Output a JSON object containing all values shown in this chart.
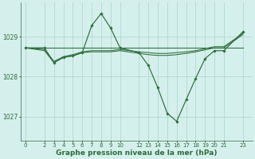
{
  "background_color": "#d5f0ec",
  "grid_color": "#b0d8d0",
  "line_color": "#2d6b3c",
  "marker_color": "#2d6b3c",
  "xlabel": "Graphe pression niveau de la mer (hPa)",
  "xlabel_fontsize": 6.5,
  "ylabel_ticks": [
    1027,
    1028,
    1029
  ],
  "xlim": [
    -0.5,
    24
  ],
  "ylim": [
    1026.4,
    1029.85
  ],
  "xticks": [
    0,
    2,
    3,
    4,
    5,
    6,
    7,
    8,
    9,
    10,
    12,
    13,
    14,
    15,
    16,
    17,
    18,
    19,
    20,
    21,
    23
  ],
  "series": [
    {
      "x": [
        0,
        2,
        3,
        4,
        5,
        6,
        7,
        8,
        9,
        10,
        12,
        13,
        14,
        15,
        16,
        17,
        18,
        19,
        20,
        21,
        23
      ],
      "y": [
        1028.72,
        1028.72,
        1028.35,
        1028.48,
        1028.52,
        1028.6,
        1029.28,
        1029.58,
        1029.22,
        1028.72,
        1028.6,
        1028.28,
        1027.72,
        1027.08,
        1026.88,
        1027.42,
        1027.95,
        1028.45,
        1028.65,
        1028.65,
        1029.12
      ],
      "has_markers": true
    },
    {
      "x": [
        0,
        2,
        3,
        4,
        5,
        6,
        7,
        8,
        9,
        10,
        12,
        13,
        14,
        15,
        16,
        17,
        18,
        19,
        20,
        21,
        23
      ],
      "y": [
        1028.72,
        1028.72,
        1028.72,
        1028.72,
        1028.72,
        1028.72,
        1028.72,
        1028.72,
        1028.72,
        1028.72,
        1028.72,
        1028.72,
        1028.72,
        1028.72,
        1028.72,
        1028.72,
        1028.72,
        1028.72,
        1028.72,
        1028.72,
        1028.72
      ],
      "has_markers": false
    },
    {
      "x": [
        0,
        2,
        3,
        4,
        5,
        6,
        7,
        8,
        9,
        10,
        12,
        13,
        14,
        15,
        16,
        17,
        18,
        19,
        20,
        21,
        23
      ],
      "y": [
        1028.72,
        1028.68,
        1028.38,
        1028.5,
        1028.55,
        1028.62,
        1028.65,
        1028.65,
        1028.65,
        1028.68,
        1028.62,
        1028.6,
        1028.58,
        1028.58,
        1028.6,
        1028.62,
        1028.65,
        1028.7,
        1028.75,
        1028.75,
        1029.08
      ],
      "has_markers": false
    },
    {
      "x": [
        0,
        2,
        3,
        4,
        5,
        6,
        7,
        8,
        9,
        10,
        12,
        13,
        14,
        15,
        16,
        17,
        18,
        19,
        20,
        21,
        23
      ],
      "y": [
        1028.72,
        1028.65,
        1028.35,
        1028.48,
        1028.52,
        1028.6,
        1028.62,
        1028.62,
        1028.62,
        1028.65,
        1028.58,
        1028.55,
        1028.53,
        1028.53,
        1028.55,
        1028.58,
        1028.62,
        1028.67,
        1028.72,
        1028.72,
        1029.05
      ],
      "has_markers": false
    }
  ]
}
